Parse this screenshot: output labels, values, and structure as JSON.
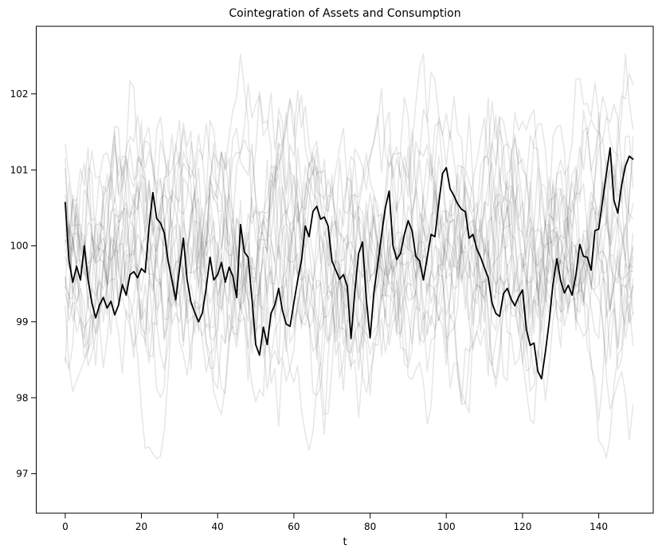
{
  "figure": {
    "title": "Cointegration of Assets and Consumption",
    "xlabel": "t"
  },
  "chart_data": {
    "type": "line",
    "title": "Cointegration of Assets and Consumption",
    "xlabel": "t",
    "ylabel": "",
    "xlim": [
      -7.6,
      154.3
    ],
    "ylim": [
      96.48,
      102.89
    ],
    "x_ticks": [
      0,
      20,
      40,
      60,
      80,
      100,
      120,
      140
    ],
    "y_ticks": [
      97,
      98,
      99,
      100,
      101,
      102
    ],
    "grid": false,
    "legend": "none",
    "background_color": "#ffffff",
    "axes_color": "#000000",
    "highlight_series": {
      "name": "highlighted-cointegrated-path",
      "color": "#000000",
      "line_width": 1.8,
      "x_start": 0,
      "x_step": 1,
      "values": [
        100.57,
        99.8,
        99.52,
        99.73,
        99.55,
        100.0,
        99.55,
        99.25,
        99.05,
        99.22,
        99.32,
        99.18,
        99.27,
        99.09,
        99.22,
        99.49,
        99.35,
        99.62,
        99.66,
        99.58,
        99.7,
        99.65,
        100.25,
        100.7,
        100.36,
        100.3,
        100.17,
        99.8,
        99.55,
        99.29,
        99.7,
        100.1,
        99.55,
        99.26,
        99.12,
        99.0,
        99.12,
        99.45,
        99.85,
        99.55,
        99.62,
        99.78,
        99.52,
        99.72,
        99.6,
        99.32,
        100.28,
        99.92,
        99.85,
        99.3,
        98.7,
        98.56,
        98.93,
        98.7,
        99.11,
        99.22,
        99.44,
        99.15,
        98.97,
        98.94,
        99.25,
        99.55,
        99.81,
        100.26,
        100.12,
        100.45,
        100.52,
        100.35,
        100.38,
        100.26,
        99.8,
        99.68,
        99.56,
        99.62,
        99.47,
        98.78,
        99.4,
        99.9,
        100.05,
        99.3,
        98.79,
        99.38,
        99.75,
        100.14,
        100.5,
        100.72,
        100.0,
        99.82,
        99.9,
        100.15,
        100.33,
        100.2,
        99.86,
        99.8,
        99.55,
        99.85,
        100.15,
        100.12,
        100.55,
        100.95,
        101.03,
        100.75,
        100.66,
        100.55,
        100.48,
        100.45,
        100.1,
        100.15,
        99.96,
        99.85,
        99.71,
        99.58,
        99.25,
        99.11,
        99.07,
        99.37,
        99.44,
        99.3,
        99.21,
        99.33,
        99.42,
        98.9,
        98.69,
        98.72,
        98.35,
        98.25,
        98.6,
        99.0,
        99.5,
        99.83,
        99.54,
        99.38,
        99.48,
        99.35,
        99.61,
        100.02,
        99.86,
        99.85,
        99.68,
        100.2,
        100.22,
        100.59,
        100.95,
        101.29,
        100.6,
        100.43,
        100.8,
        101.05,
        101.18,
        101.14
      ]
    },
    "background_series": {
      "name": "background-noise-paths",
      "count": 20,
      "color": "#1a1a1a",
      "opacity": 0.11,
      "line_width": 1.5,
      "points": 150,
      "x_start": 0,
      "x_step": 1,
      "generator": "seeded AR(1) noise around 100; individual values not legible in source pixels",
      "seed": 20240707,
      "phi": 0.86,
      "noise_half_width": 1.15,
      "start_spread": 1.7,
      "clamp": [
        96.6,
        102.75
      ]
    }
  }
}
